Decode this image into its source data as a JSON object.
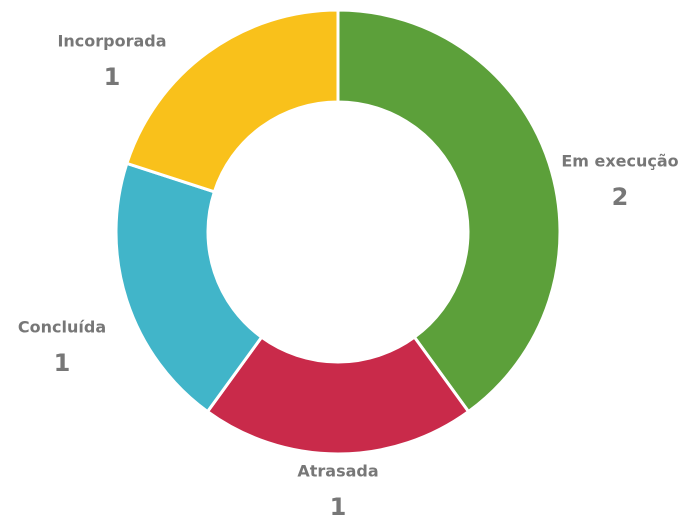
{
  "chart_data": {
    "type": "donut",
    "categories": [
      "Em execução",
      "Atrasada",
      "Concluída",
      "Incorporada"
    ],
    "values": [
      2,
      1,
      1,
      1
    ],
    "colors": [
      "#5ca03a",
      "#c92a4a",
      "#41b5c9",
      "#f9c11b"
    ]
  }
}
